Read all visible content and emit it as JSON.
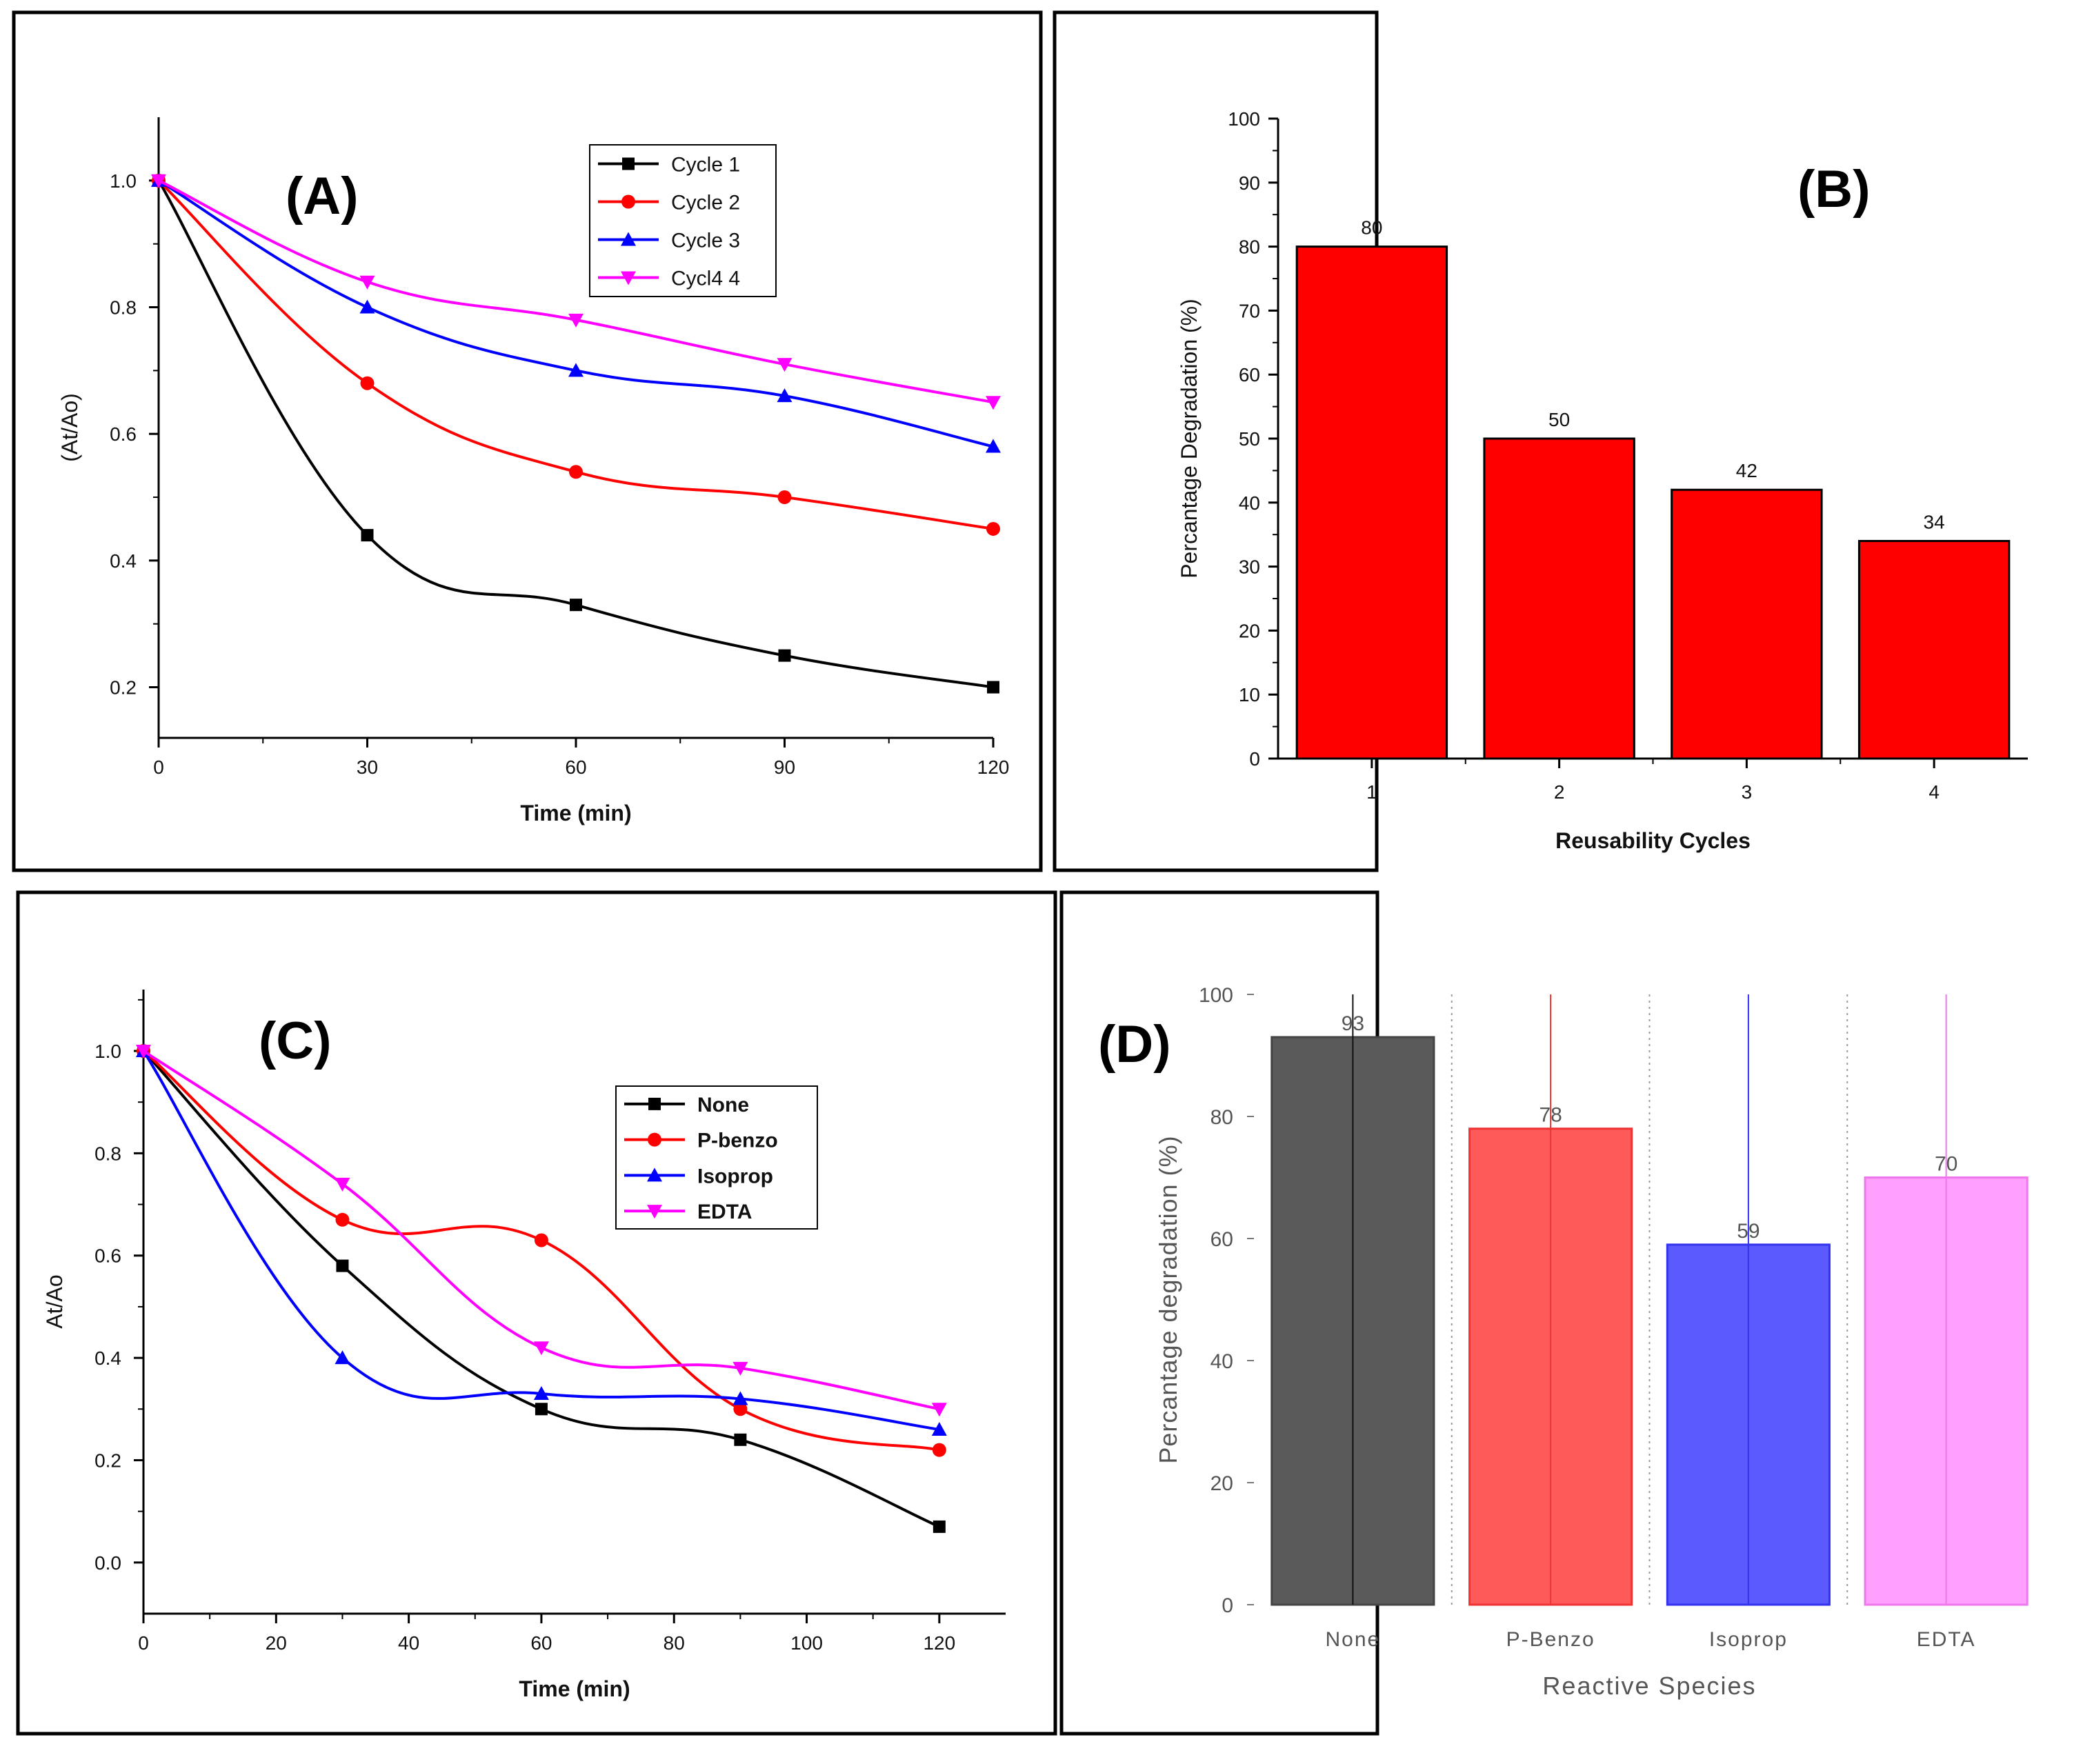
{
  "chart_data": [
    {
      "panel": "(A)",
      "type": "line",
      "xlabel": "Time (min)",
      "ylabel": "(At/Ao)",
      "xlim": [
        0,
        120
      ],
      "ylim": [
        0.12,
        1.1
      ],
      "xticks": [
        0,
        30,
        60,
        90,
        120
      ],
      "yticks": [
        0.2,
        0.4,
        0.6,
        0.8,
        1.0
      ],
      "xtick_labels": [
        "0",
        "30",
        "60",
        "90",
        "120"
      ],
      "ytick_labels": [
        "0.2",
        "0.4",
        "0.6",
        "0.8",
        "1.0"
      ],
      "legend_position": "top-right",
      "x": [
        0,
        30,
        60,
        90,
        120
      ],
      "series": [
        {
          "name": "Cycle  1",
          "color": "#000000",
          "marker": "square",
          "values": [
            1.0,
            0.44,
            0.33,
            0.25,
            0.2
          ]
        },
        {
          "name": "Cycle  2",
          "color": "#ff0000",
          "marker": "circle",
          "values": [
            1.0,
            0.68,
            0.54,
            0.5,
            0.45
          ]
        },
        {
          "name": "Cycle  3",
          "color": "#0000ff",
          "marker": "triangle-up",
          "values": [
            1.0,
            0.8,
            0.7,
            0.66,
            0.58
          ]
        },
        {
          "name": "Cycl4  4",
          "color": "#ff00ff",
          "marker": "triangle-down",
          "values": [
            1.0,
            0.84,
            0.78,
            0.71,
            0.65
          ]
        }
      ]
    },
    {
      "panel": "(B)",
      "type": "bar",
      "xlabel": "Reusability Cycles",
      "ylabel": "Percantage Degradation (%)",
      "ylim": [
        0,
        100
      ],
      "yticks": [
        0,
        10,
        20,
        30,
        40,
        50,
        60,
        70,
        80,
        90,
        100
      ],
      "ytick_labels": [
        "0",
        "10",
        "20",
        "30",
        "40",
        "50",
        "60",
        "70",
        "80",
        "90",
        "100"
      ],
      "categories": [
        "1",
        "2",
        "3",
        "4"
      ],
      "values": [
        80,
        50,
        42,
        34
      ],
      "value_labels": [
        "80",
        "50",
        "42",
        "34"
      ],
      "bar_color": "#ff0000"
    },
    {
      "panel": "(C)",
      "type": "line",
      "xlabel": "Time (min)",
      "ylabel": "At/Ao",
      "xlim": [
        0,
        130
      ],
      "ylim": [
        -0.1,
        1.12
      ],
      "xticks": [
        0,
        20,
        40,
        60,
        80,
        100,
        120
      ],
      "yticks": [
        0.0,
        0.2,
        0.4,
        0.6,
        0.8,
        1.0
      ],
      "xtick_labels": [
        "0",
        "20",
        "40",
        "60",
        "80",
        "100",
        "120"
      ],
      "ytick_labels": [
        "0.0",
        "0.2",
        "0.4",
        "0.6",
        "0.8",
        "1.0"
      ],
      "legend_position": "right",
      "x": [
        0,
        30,
        60,
        90,
        120
      ],
      "series": [
        {
          "name": "None",
          "color": "#000000",
          "marker": "square",
          "values": [
            1.0,
            0.58,
            0.3,
            0.24,
            0.07
          ]
        },
        {
          "name": "P-benzo",
          "color": "#ff0000",
          "marker": "circle",
          "values": [
            1.0,
            0.67,
            0.63,
            0.3,
            0.22
          ]
        },
        {
          "name": "Isoprop",
          "color": "#0000ff",
          "marker": "triangle-up",
          "values": [
            1.0,
            0.4,
            0.33,
            0.32,
            0.26
          ]
        },
        {
          "name": "EDTA",
          "color": "#ff00ff",
          "marker": "triangle-down",
          "values": [
            1.0,
            0.74,
            0.42,
            0.38,
            0.3
          ]
        }
      ]
    },
    {
      "panel": "(D)",
      "type": "bar",
      "xlabel": "Reactive Species",
      "ylabel": "Percantage degradation (%)",
      "ylim": [
        0,
        100
      ],
      "yticks": [
        0,
        20,
        40,
        60,
        80,
        100
      ],
      "ytick_labels": [
        "0",
        "20",
        "40",
        "60",
        "80",
        "100"
      ],
      "categories": [
        "None",
        "P-Benzo",
        "Isoprop",
        "EDTA"
      ],
      "values": [
        93,
        78,
        59,
        70
      ],
      "value_labels": [
        "93",
        "78",
        "59",
        "70"
      ],
      "bar_colors": [
        "#5a5a5a",
        "#ff5a5a",
        "#5a5aff",
        "#ffa0ff"
      ],
      "bar_edge_colors": [
        "#444444",
        "#ee3333",
        "#3333ee",
        "#ee77ee"
      ]
    }
  ]
}
